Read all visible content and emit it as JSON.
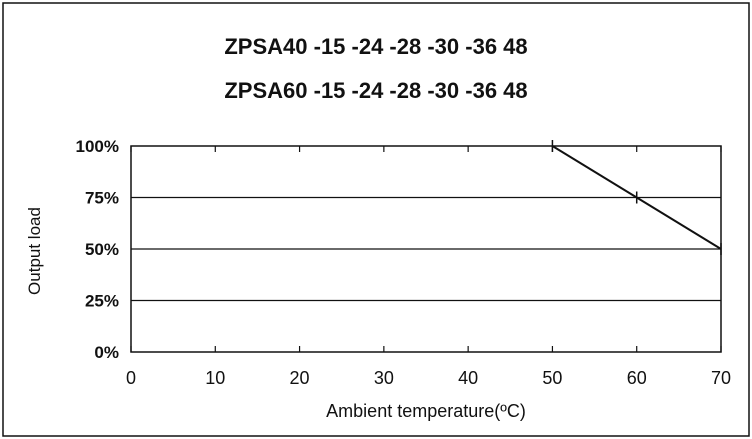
{
  "chart_data": {
    "type": "line",
    "title_lines": [
      "ZPSA40 -15 -24 -28 -30 -36 48",
      "ZPSA60 -15 -24 -28 -30 -36 48"
    ],
    "xlabel": "Ambient temperature(ºC)",
    "ylabel": "Output load",
    "x_ticks": [
      "0",
      "10",
      "20",
      "30",
      "40",
      "50",
      "60",
      "70"
    ],
    "y_ticks": [
      "0%",
      "25%",
      "50%",
      "75%",
      "100%"
    ],
    "xlim": [
      0,
      70
    ],
    "ylim": [
      0,
      100
    ],
    "grid": "horizontal",
    "series": [
      {
        "x": [
          50,
          60,
          70
        ],
        "y": [
          100,
          75,
          50
        ]
      }
    ],
    "colors": {
      "line": "#111111",
      "grid": "#111111",
      "frame": "#111111"
    }
  }
}
